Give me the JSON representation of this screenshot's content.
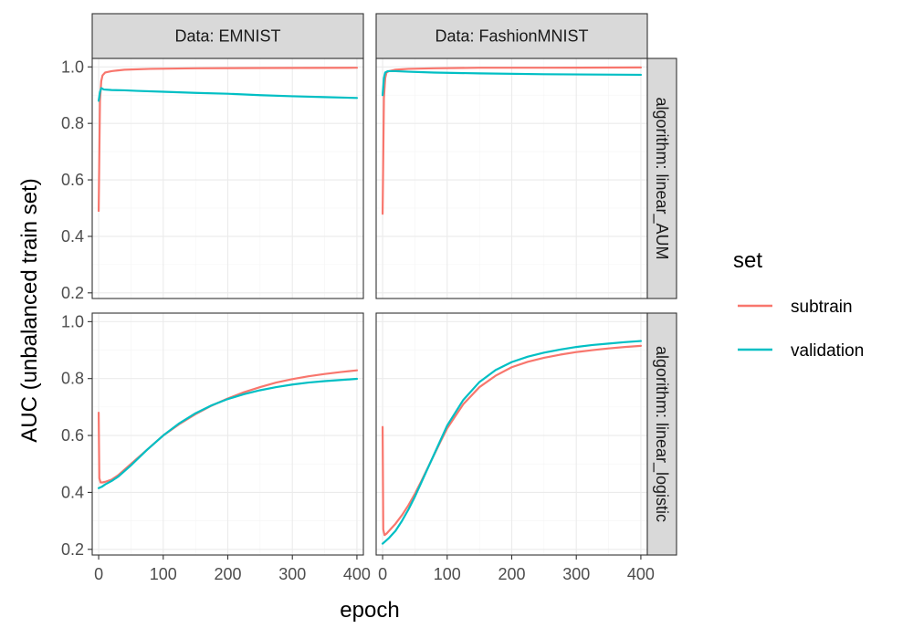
{
  "chart_data": {
    "type": "line",
    "xlabel": "epoch",
    "ylabel": "AUC (unbalanced train set)",
    "xlim": [
      -10,
      410
    ],
    "ylim": [
      0.18,
      1.03
    ],
    "x_ticks": [
      0,
      100,
      200,
      300,
      400
    ],
    "y_ticks": [
      0.2,
      0.4,
      0.6,
      0.8,
      1.0
    ],
    "x_tick_labels": [
      "0",
      "100",
      "200",
      "300",
      "400"
    ],
    "y_tick_labels": [
      "0.2",
      "0.4",
      "0.6",
      "0.8",
      "1.0"
    ],
    "grid": true,
    "facet_columns": [
      "Data: EMNIST",
      "Data: FashionMNIST"
    ],
    "facet_rows": [
      "algorithm: linear_AUM",
      "algorithm: linear_logistic"
    ],
    "legend": {
      "title": "set",
      "position": "right",
      "entries": [
        {
          "name": "subtrain",
          "color": "#F8766D"
        },
        {
          "name": "validation",
          "color": "#00BFC4"
        }
      ]
    },
    "panels": [
      {
        "column": "Data: EMNIST",
        "row": "algorithm: linear_AUM",
        "series": [
          {
            "name": "subtrain",
            "x": [
              0,
              2,
              4,
              6,
              10,
              20,
              40,
              80,
              150,
              250,
              400
            ],
            "y": [
              0.49,
              0.88,
              0.95,
              0.97,
              0.98,
              0.985,
              0.99,
              0.993,
              0.995,
              0.996,
              0.997
            ]
          },
          {
            "name": "validation",
            "x": [
              0,
              2,
              4,
              8,
              20,
              40,
              60,
              100,
              150,
              200,
              250,
              300,
              350,
              400
            ],
            "y": [
              0.88,
              0.91,
              0.925,
              0.92,
              0.918,
              0.917,
              0.915,
              0.912,
              0.908,
              0.905,
              0.9,
              0.896,
              0.893,
              0.89
            ]
          }
        ]
      },
      {
        "column": "Data: FashionMNIST",
        "row": "algorithm: linear_AUM",
        "series": [
          {
            "name": "subtrain",
            "x": [
              0,
              2,
              4,
              6,
              10,
              20,
              40,
              80,
              150,
              250,
              400
            ],
            "y": [
              0.48,
              0.89,
              0.96,
              0.98,
              0.985,
              0.99,
              0.993,
              0.995,
              0.997,
              0.997,
              0.998
            ]
          },
          {
            "name": "validation",
            "x": [
              0,
              2,
              4,
              8,
              20,
              40,
              80,
              150,
              250,
              400
            ],
            "y": [
              0.9,
              0.96,
              0.98,
              0.985,
              0.985,
              0.983,
              0.98,
              0.977,
              0.974,
              0.972
            ]
          }
        ]
      },
      {
        "column": "Data: EMNIST",
        "row": "algorithm: linear_logistic",
        "series": [
          {
            "name": "subtrain",
            "x": [
              0,
              1,
              3,
              6,
              10,
              20,
              30,
              50,
              75,
              100,
              125,
              150,
              175,
              200,
              225,
              250,
              275,
              300,
              325,
              350,
              375,
              400
            ],
            "y": [
              0.68,
              0.45,
              0.435,
              0.435,
              0.437,
              0.445,
              0.46,
              0.5,
              0.55,
              0.6,
              0.64,
              0.675,
              0.705,
              0.73,
              0.752,
              0.77,
              0.786,
              0.798,
              0.808,
              0.816,
              0.823,
              0.829
            ]
          },
          {
            "name": "validation",
            "x": [
              0,
              5,
              10,
              20,
              30,
              50,
              75,
              100,
              125,
              150,
              175,
              200,
              225,
              250,
              275,
              300,
              325,
              350,
              375,
              400
            ],
            "y": [
              0.415,
              0.42,
              0.428,
              0.44,
              0.455,
              0.495,
              0.55,
              0.6,
              0.643,
              0.678,
              0.706,
              0.728,
              0.745,
              0.759,
              0.77,
              0.779,
              0.786,
              0.791,
              0.795,
              0.799
            ]
          }
        ]
      },
      {
        "column": "Data: FashionMNIST",
        "row": "algorithm: linear_logistic",
        "series": [
          {
            "name": "subtrain",
            "x": [
              0,
              1,
              3,
              6,
              10,
              20,
              30,
              40,
              50,
              60,
              75,
              90,
              100,
              125,
              150,
              175,
              200,
              225,
              250,
              275,
              300,
              325,
              350,
              375,
              400
            ],
            "y": [
              0.63,
              0.27,
              0.25,
              0.255,
              0.265,
              0.29,
              0.32,
              0.355,
              0.395,
              0.44,
              0.51,
              0.58,
              0.625,
              0.71,
              0.77,
              0.81,
              0.84,
              0.859,
              0.873,
              0.884,
              0.893,
              0.9,
              0.906,
              0.911,
              0.915
            ]
          },
          {
            "name": "validation",
            "x": [
              0,
              5,
              10,
              20,
              30,
              40,
              50,
              60,
              75,
              90,
              100,
              125,
              150,
              175,
              200,
              225,
              250,
              275,
              300,
              325,
              350,
              375,
              400
            ],
            "y": [
              0.22,
              0.23,
              0.24,
              0.265,
              0.3,
              0.34,
              0.385,
              0.435,
              0.51,
              0.585,
              0.635,
              0.725,
              0.788,
              0.83,
              0.858,
              0.877,
              0.891,
              0.902,
              0.911,
              0.918,
              0.923,
              0.928,
              0.932
            ]
          }
        ]
      }
    ]
  }
}
